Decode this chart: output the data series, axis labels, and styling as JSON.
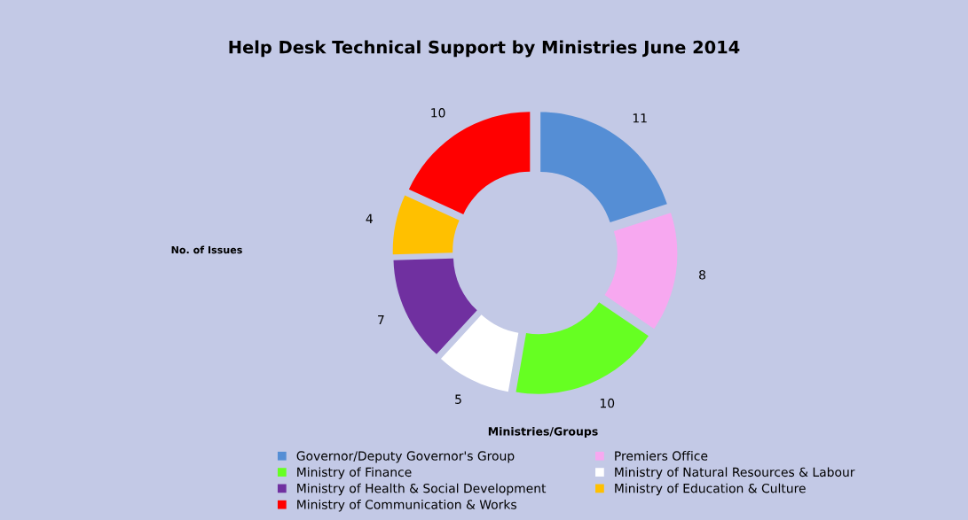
{
  "chart_data": {
    "type": "donut",
    "title": "Help Desk Technical Support by Ministries June 2014",
    "ylabel": "No. of Issues",
    "xlabel": "Ministries/Groups",
    "categories": [
      "Governor/Deputy Governor's Group",
      "Premiers Office",
      "Ministry of Finance",
      "Ministry of Natural Resources & Labour",
      "Ministry of Health & Social Development",
      "Ministry of Education & Culture",
      "Ministry of Communication & Works"
    ],
    "values": [
      11,
      8,
      10,
      5,
      7,
      4,
      10
    ],
    "colors": [
      "#558ed5",
      "#f7a8f0",
      "#66ff22",
      "#ffffff",
      "#7030a0",
      "#ffc000",
      "#ff0000"
    ],
    "data_labels": true,
    "legend": "bottom"
  }
}
